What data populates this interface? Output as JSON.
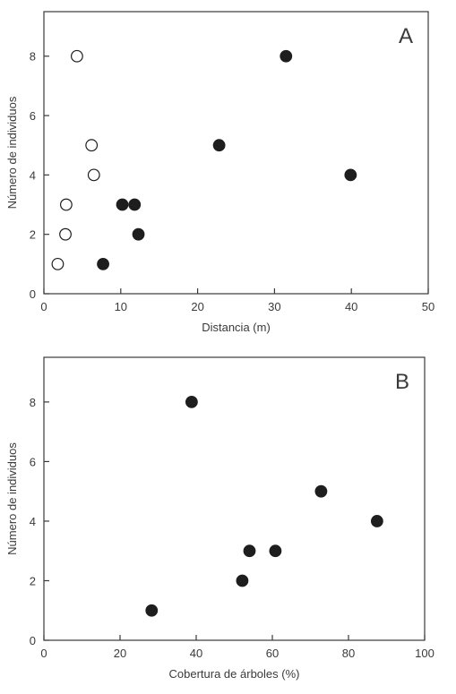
{
  "chart_data": [
    {
      "type": "scatter",
      "panel_label": "A",
      "xlabel": "Distancia (m)",
      "ylabel": "Número de individuos",
      "xlim": [
        0,
        50
      ],
      "ylim": [
        0,
        9.5
      ],
      "xticks": [
        0,
        10,
        20,
        30,
        40,
        50
      ],
      "yticks": [
        0,
        2,
        4,
        6,
        8
      ],
      "grid": false,
      "series": [
        {
          "marker": "open-circle",
          "points": [
            [
              1.8,
              1
            ],
            [
              2.8,
              2
            ],
            [
              2.9,
              3
            ],
            [
              4.3,
              8
            ],
            [
              6.2,
              5
            ],
            [
              6.5,
              4
            ]
          ]
        },
        {
          "marker": "filled-circle",
          "points": [
            [
              7.7,
              1
            ],
            [
              10.2,
              3
            ],
            [
              11.8,
              3
            ],
            [
              12.3,
              2
            ],
            [
              22.8,
              5
            ],
            [
              31.5,
              8
            ],
            [
              39.9,
              4
            ]
          ]
        }
      ]
    },
    {
      "type": "scatter",
      "panel_label": "B",
      "xlabel": "Cobertura de árboles (%)",
      "ylabel": "Número de individuos",
      "xlim": [
        0,
        100
      ],
      "ylim": [
        0,
        9.5
      ],
      "xticks": [
        0,
        20,
        40,
        60,
        80,
        100
      ],
      "yticks": [
        0,
        2,
        4,
        6,
        8
      ],
      "grid": false,
      "series": [
        {
          "marker": "filled-circle",
          "points": [
            [
              28.3,
              1
            ],
            [
              38.8,
              8
            ],
            [
              52.1,
              2
            ],
            [
              54.0,
              3
            ],
            [
              60.8,
              3
            ],
            [
              72.8,
              5
            ],
            [
              87.5,
              4
            ]
          ]
        }
      ]
    }
  ]
}
